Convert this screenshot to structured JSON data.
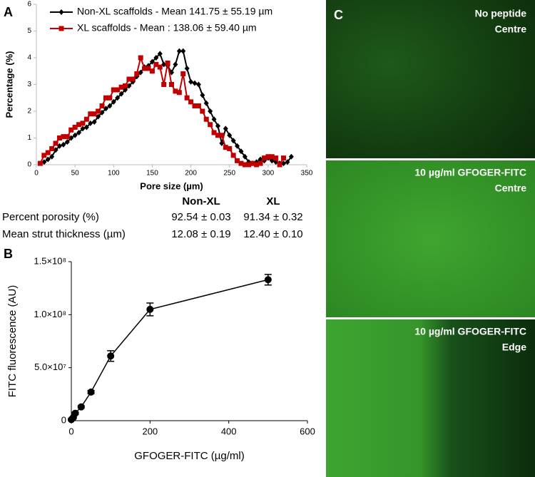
{
  "chart_data": [
    {
      "type": "line",
      "panel": "A",
      "xlabel": "Pore size (µm)",
      "ylabel": "Percentage (%)",
      "xlim": [
        0,
        350
      ],
      "xticks": [
        0,
        50,
        100,
        150,
        200,
        250,
        300,
        350
      ],
      "ylim": [
        0,
        6
      ],
      "yticks": [
        0,
        1,
        2,
        3,
        4,
        5,
        6
      ],
      "legend": "top-left",
      "series": [
        {
          "name": "Non-XL scaffolds - Mean 141.75 ± 55.19 µm",
          "color": "#000000",
          "marker": "diamond",
          "x": [
            10,
            15,
            20,
            25,
            30,
            35,
            40,
            45,
            50,
            55,
            60,
            65,
            70,
            75,
            80,
            85,
            90,
            95,
            100,
            105,
            110,
            115,
            120,
            125,
            130,
            135,
            140,
            145,
            150,
            155,
            160,
            165,
            170,
            175,
            180,
            185,
            190,
            195,
            200,
            205,
            210,
            215,
            220,
            225,
            230,
            235,
            240,
            245,
            250,
            255,
            260,
            265,
            270,
            275,
            280,
            285,
            290,
            295,
            300,
            305,
            310,
            315,
            320,
            325,
            330
          ],
          "values": [
            0.1,
            0.2,
            0.3,
            0.55,
            0.7,
            0.75,
            0.85,
            1.0,
            1.1,
            1.2,
            1.35,
            1.4,
            1.55,
            1.6,
            1.8,
            1.95,
            2.1,
            2.2,
            2.35,
            2.5,
            2.65,
            2.8,
            2.95,
            3.1,
            3.3,
            3.45,
            3.65,
            3.7,
            3.85,
            4.0,
            4.15,
            3.75,
            3.7,
            3.45,
            3.75,
            4.25,
            4.25,
            3.6,
            3.1,
            3.05,
            3.0,
            2.6,
            2.3,
            2.0,
            1.7,
            1.45,
            0.8,
            1.35,
            1.1,
            0.9,
            0.7,
            0.5,
            0.3,
            0.1,
            0.05,
            0.1,
            0.2,
            0.15,
            0.25,
            0.15,
            0.1,
            0.05,
            0.05,
            0.1,
            0.3
          ]
        },
        {
          "name": "XL scaffolds - Mean : 138.06 ± 59.40 µm",
          "color": "#c00000",
          "marker": "square",
          "x": [
            5,
            10,
            15,
            20,
            25,
            30,
            35,
            40,
            45,
            50,
            55,
            60,
            65,
            70,
            75,
            80,
            85,
            90,
            95,
            100,
            105,
            110,
            115,
            120,
            125,
            130,
            135,
            140,
            145,
            150,
            155,
            160,
            165,
            170,
            175,
            180,
            185,
            190,
            195,
            200,
            205,
            210,
            215,
            220,
            225,
            230,
            235,
            240,
            245,
            250,
            255,
            260,
            265,
            270,
            275,
            280,
            285,
            290,
            295,
            300,
            305,
            310,
            315,
            320
          ],
          "values": [
            0.05,
            0.35,
            0.45,
            0.6,
            0.8,
            1.0,
            1.05,
            1.05,
            1.3,
            1.4,
            1.5,
            1.55,
            1.7,
            1.9,
            1.9,
            2.0,
            2.2,
            2.5,
            2.5,
            2.8,
            2.8,
            2.9,
            2.95,
            3.2,
            3.2,
            3.4,
            4.0,
            3.6,
            3.6,
            3.5,
            3.75,
            3.65,
            3.0,
            3.8,
            3.0,
            2.75,
            2.7,
            3.4,
            2.5,
            2.35,
            2.2,
            2.2,
            2.0,
            1.7,
            1.5,
            1.2,
            1.1,
            1.1,
            0.65,
            0.6,
            0.35,
            0.15,
            0.05,
            0.0,
            0.0,
            0.05,
            0.0,
            0.05,
            0.25,
            0.3,
            0.3,
            0.25,
            0.0,
            0.25
          ]
        }
      ]
    },
    {
      "type": "errorline",
      "panel": "B",
      "xlabel": "GFOGER-FITC (µg/ml)",
      "ylabel": "FITC fluorescence (AU)",
      "xlim": [
        0,
        600
      ],
      "xticks": [
        0,
        200,
        400,
        600
      ],
      "ylim": [
        0,
        150000000
      ],
      "yticks": [
        0,
        {
          "value": 50000000,
          "label": "5.0×10⁷"
        },
        {
          "value": 100000000,
          "label": "1.0×10⁸"
        },
        {
          "value": 150000000,
          "label": "1.5×10⁸"
        }
      ],
      "series": [
        {
          "color": "#000000",
          "x": [
            0,
            5,
            10,
            25,
            50,
            100,
            200,
            500
          ],
          "values": [
            1000000,
            3000000,
            7000000,
            13000000,
            27000000,
            61000000,
            105000000,
            133000000
          ],
          "errors": [
            500000,
            800000,
            1000000,
            1000000,
            1500000,
            5000000,
            6000000,
            5000000
          ]
        }
      ]
    }
  ],
  "table": {
    "header": [
      "Non-XL",
      "XL"
    ],
    "rows": [
      [
        "Percent porosity (%)",
        "92.54 ± 0.03",
        "91.34 ± 0.32"
      ],
      [
        "Mean strut thickness (µm)",
        "12.08 ± 0.19",
        "12.40 ± 0.10"
      ]
    ]
  },
  "images": {
    "panel": "C",
    "items": [
      {
        "line1": "No peptide",
        "line2": "Centre"
      },
      {
        "line1": "10 µg/ml GFOGER-FITC",
        "line2": "Centre"
      },
      {
        "line1": "10 µg/ml GFOGER-FITC",
        "line2": "Edge"
      }
    ]
  }
}
